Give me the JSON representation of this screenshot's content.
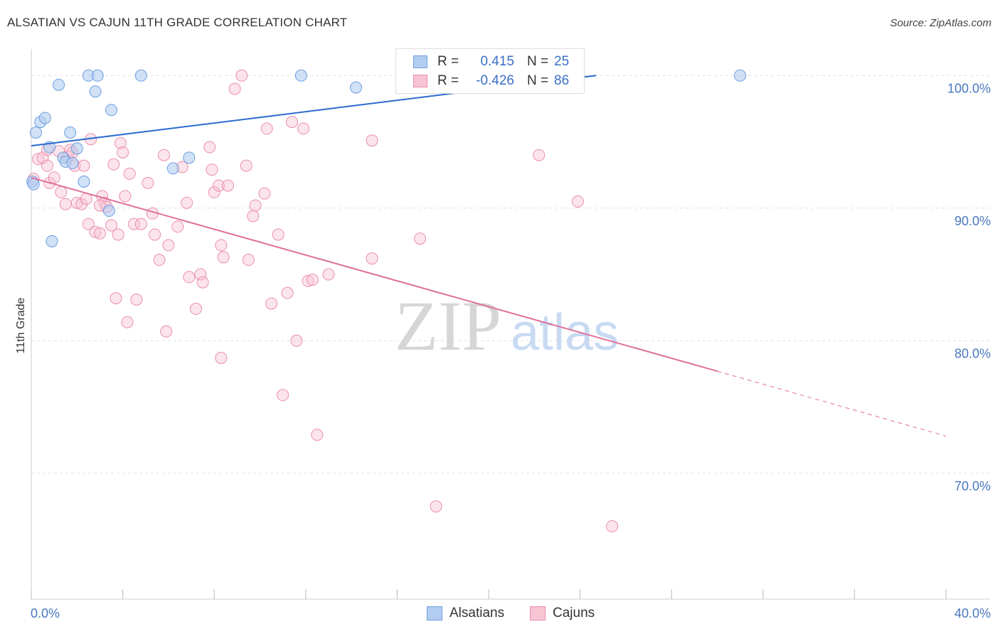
{
  "title": "ALSATIAN VS CAJUN 11TH GRADE CORRELATION CHART",
  "source": "Source: ZipAtlas.com",
  "watermark": {
    "zip": "ZIP",
    "atlas": "atlas"
  },
  "legend_top": [
    {
      "r_label": "R =",
      "r_value": "0.415",
      "n_label": "N =",
      "n_value": "25"
    },
    {
      "r_label": "R =",
      "r_value": "-0.426",
      "n_label": "N =",
      "n_value": "86"
    }
  ],
  "legend_bottom": [
    "Alsatians",
    "Cajuns"
  ],
  "colors": {
    "alsatian_fill": "#b3cdf0",
    "alsatian_stroke": "#6d9ee0",
    "alsatian_line": "#2b6bd0",
    "cajun_fill": "#f8c4d4",
    "cajun_stroke": "#ea8fab",
    "cajun_line": "#e0709a",
    "tick_text": "#4a78c0",
    "grid": "#e0e0e0"
  },
  "chart_data": {
    "type": "scatter",
    "title": "ALSATIAN VS CAJUN 11TH GRADE CORRELATION CHART",
    "xlabel": "",
    "ylabel": "11th Grade",
    "xlim": [
      0,
      40
    ],
    "ylim": [
      60.5,
      102
    ],
    "x_tick_labels": [
      "0.0%",
      "40.0%"
    ],
    "y_ticks": [
      70,
      80,
      90,
      100
    ],
    "y_tick_labels": [
      "70.0%",
      "80.0%",
      "90.0%",
      "100.0%"
    ],
    "series": [
      {
        "name": "Alsatians",
        "r": 0.415,
        "n": 25,
        "points": [
          [
            0.05,
            92.0
          ],
          [
            0.2,
            95.7
          ],
          [
            0.4,
            96.5
          ],
          [
            0.6,
            96.8
          ],
          [
            0.8,
            94.6
          ],
          [
            0.9,
            87.5
          ],
          [
            1.2,
            99.3
          ],
          [
            1.4,
            93.8
          ],
          [
            1.5,
            93.5
          ],
          [
            1.7,
            95.7
          ],
          [
            1.8,
            93.4
          ],
          [
            2.0,
            94.5
          ],
          [
            2.3,
            92.0
          ],
          [
            2.5,
            100.0
          ],
          [
            2.8,
            98.8
          ],
          [
            2.9,
            100.0
          ],
          [
            3.5,
            97.4
          ],
          [
            3.4,
            89.8
          ],
          [
            4.8,
            100.0
          ],
          [
            6.2,
            93.0
          ],
          [
            6.9,
            93.8
          ],
          [
            11.8,
            100.0
          ],
          [
            14.2,
            99.1
          ],
          [
            31.0,
            100.0
          ],
          [
            0.1,
            91.8
          ]
        ],
        "trend": {
          "x": [
            0,
            24.7
          ],
          "y": [
            94.7,
            100.0
          ]
        }
      },
      {
        "name": "Cajuns",
        "r": -0.426,
        "n": 86,
        "points": [
          [
            0.1,
            92.2
          ],
          [
            0.3,
            93.7
          ],
          [
            0.5,
            93.8
          ],
          [
            0.7,
            93.2
          ],
          [
            0.8,
            91.9
          ],
          [
            1.0,
            92.3
          ],
          [
            1.2,
            94.3
          ],
          [
            1.3,
            91.2
          ],
          [
            1.5,
            90.3
          ],
          [
            1.6,
            93.9
          ],
          [
            1.7,
            94.4
          ],
          [
            1.9,
            93.2
          ],
          [
            2.0,
            90.4
          ],
          [
            2.2,
            90.3
          ],
          [
            2.3,
            93.2
          ],
          [
            2.4,
            90.7
          ],
          [
            2.5,
            88.8
          ],
          [
            2.6,
            95.2
          ],
          [
            2.8,
            88.2
          ],
          [
            3.0,
            88.1
          ],
          [
            3.1,
            90.9
          ],
          [
            3.2,
            90.4
          ],
          [
            3.3,
            90.1
          ],
          [
            3.5,
            88.7
          ],
          [
            3.6,
            93.3
          ],
          [
            3.7,
            83.2
          ],
          [
            3.8,
            88.0
          ],
          [
            3.9,
            94.9
          ],
          [
            4.0,
            94.2
          ],
          [
            4.1,
            90.9
          ],
          [
            4.2,
            81.4
          ],
          [
            4.3,
            92.6
          ],
          [
            4.5,
            88.8
          ],
          [
            4.6,
            83.1
          ],
          [
            4.8,
            88.8
          ],
          [
            5.1,
            91.9
          ],
          [
            5.3,
            89.6
          ],
          [
            5.4,
            88.0
          ],
          [
            5.6,
            86.1
          ],
          [
            5.8,
            94.0
          ],
          [
            5.9,
            80.7
          ],
          [
            6.0,
            87.2
          ],
          [
            6.4,
            88.6
          ],
          [
            6.6,
            93.1
          ],
          [
            6.8,
            90.4
          ],
          [
            6.9,
            84.8
          ],
          [
            7.2,
            82.4
          ],
          [
            7.4,
            85.0
          ],
          [
            7.5,
            84.4
          ],
          [
            7.8,
            94.6
          ],
          [
            7.9,
            92.9
          ],
          [
            8.0,
            91.2
          ],
          [
            8.2,
            91.7
          ],
          [
            8.3,
            87.2
          ],
          [
            8.4,
            86.3
          ],
          [
            8.6,
            91.7
          ],
          [
            8.9,
            99.0
          ],
          [
            9.2,
            100.0
          ],
          [
            9.4,
            93.2
          ],
          [
            9.5,
            86.1
          ],
          [
            9.7,
            89.4
          ],
          [
            9.8,
            90.2
          ],
          [
            10.2,
            91.1
          ],
          [
            10.5,
            82.8
          ],
          [
            10.8,
            88.0
          ],
          [
            11.0,
            75.9
          ],
          [
            11.2,
            83.6
          ],
          [
            11.4,
            96.5
          ],
          [
            11.6,
            80.0
          ],
          [
            11.9,
            96.0
          ],
          [
            12.1,
            84.5
          ],
          [
            12.3,
            84.6
          ],
          [
            12.5,
            72.9
          ],
          [
            13.0,
            85.0
          ],
          [
            14.9,
            95.1
          ],
          [
            14.9,
            86.2
          ],
          [
            17.0,
            87.7
          ],
          [
            17.7,
            67.5
          ],
          [
            22.2,
            94.0
          ],
          [
            23.9,
            90.5
          ],
          [
            25.4,
            66.0
          ],
          [
            8.3,
            78.7
          ],
          [
            10.3,
            96.0
          ],
          [
            3.0,
            90.2
          ],
          [
            1.8,
            94.2
          ],
          [
            0.7,
            94.4
          ]
        ],
        "trend": {
          "x": [
            0,
            30.0
          ],
          "y": [
            92.3,
            77.7
          ]
        },
        "trend_extension": {
          "x": [
            30.0,
            40.0
          ],
          "y": [
            77.7,
            72.8
          ]
        }
      }
    ]
  }
}
